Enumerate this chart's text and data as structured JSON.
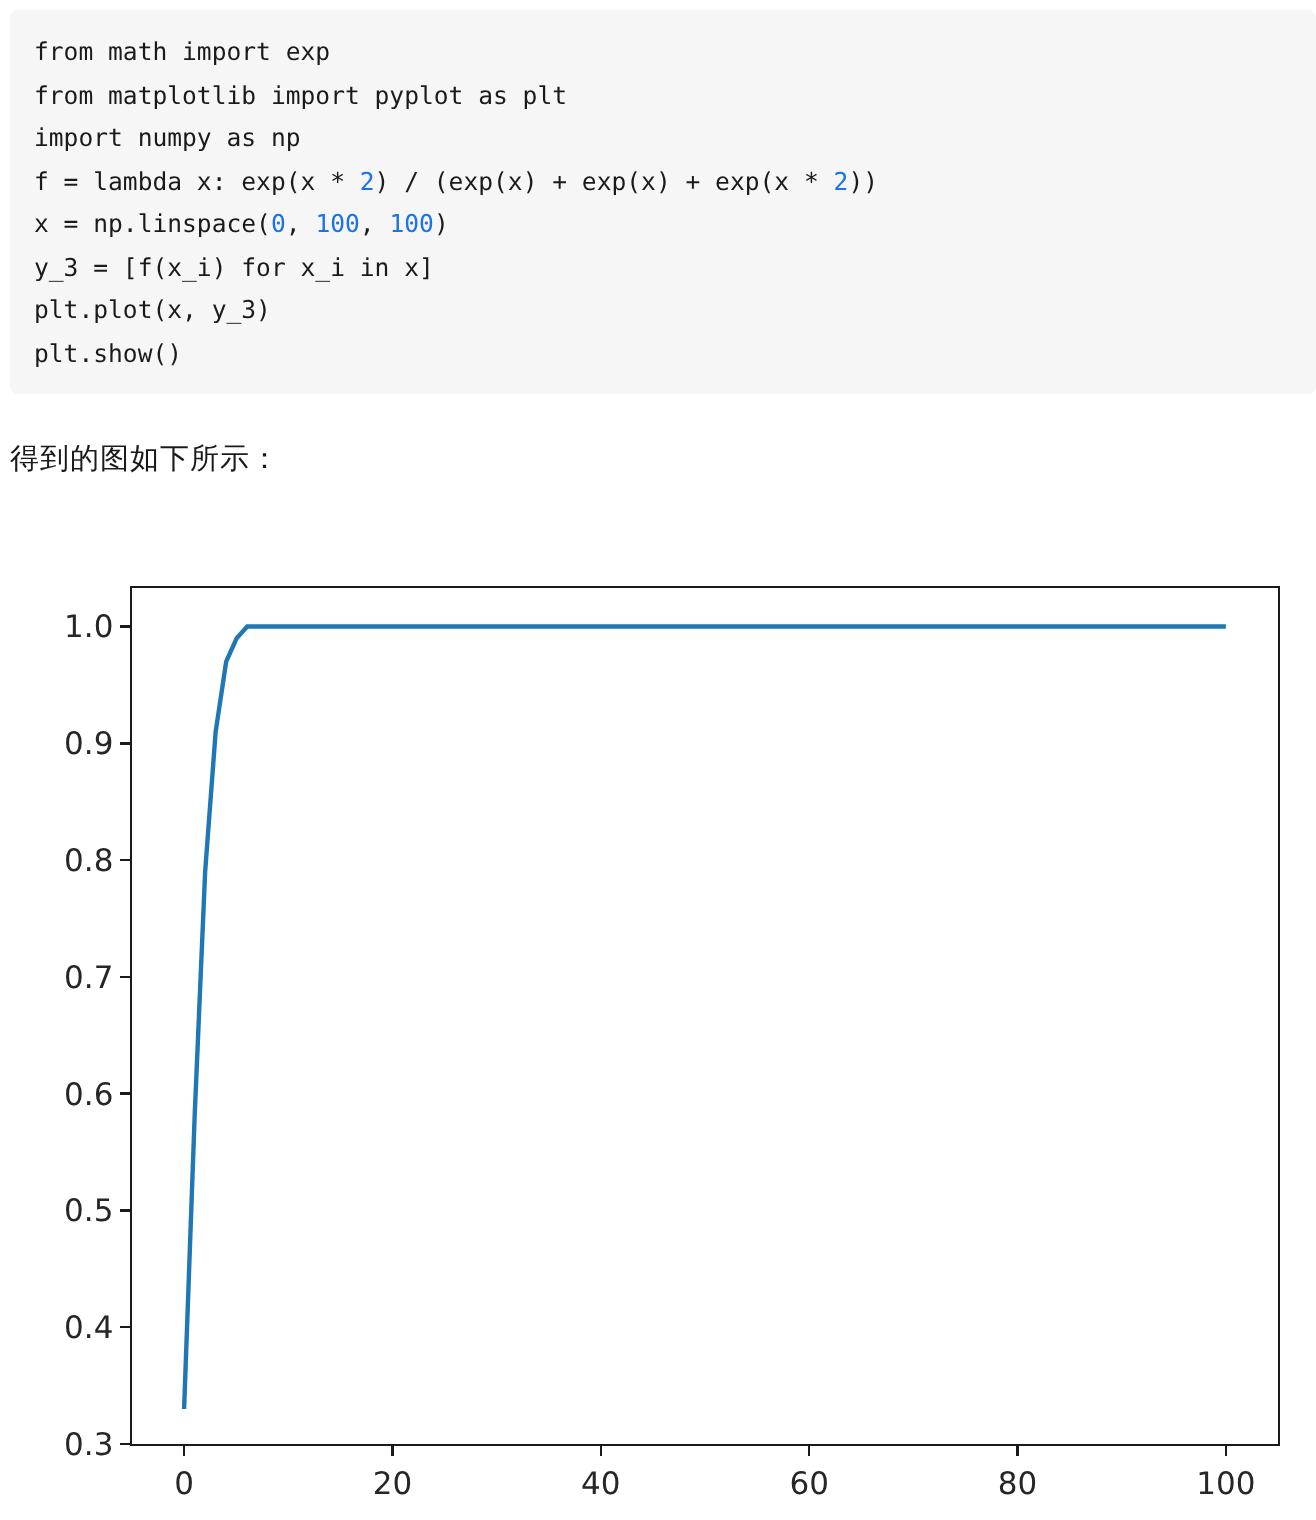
{
  "chart_data": {
    "type": "line",
    "annotations": [
      "from math import exp\nfrom matplotlib import pyplot as plt\nimport numpy as np\nf = lambda x: exp(x * 2) / (exp(x) + exp(x) + exp(x * 2))\nx = np.linspace(0, 100, 100)\ny_3 = [f(x_i) for x_i in x]\nplt.plot(x, y_3)\nplt.show()",
      "得到的图如下所示："
    ],
    "x": [
      0,
      1.01,
      2.02,
      3.03,
      4.04,
      5.05,
      6.06,
      7.07,
      8.08,
      9.09,
      10.1,
      100
    ],
    "values": [
      0.33,
      0.58,
      0.79,
      0.91,
      0.97,
      0.99,
      1.0,
      1.0,
      1.0,
      1.0,
      1.0,
      1.0
    ],
    "color": "#1f77b4",
    "xlim": [
      -5,
      105
    ],
    "xticks": [
      0,
      20,
      40,
      60,
      80,
      100
    ],
    "ylim": [
      0.3,
      1.033
    ],
    "yticks": [
      0.3,
      0.4,
      0.5,
      0.6,
      0.7,
      0.8,
      0.9,
      {
        "value": 1,
        "label": "1.0"
      }
    ]
  }
}
